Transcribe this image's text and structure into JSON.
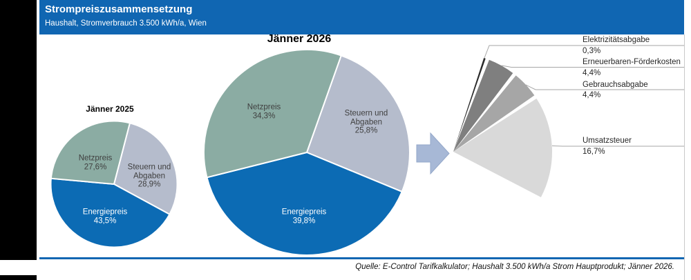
{
  "header": {
    "title": "Strompreiszusammensetzung",
    "subtitle": "Haushalt, Stromverbrauch 3.500 kWh/a, Wien"
  },
  "footer": {
    "source": "Quelle: E-Control Tarifkalkulator; Haushalt 3.500 kWh/a Strom Hauptprodukt; Jänner 2026."
  },
  "colors": {
    "header_blue": "#1066B2",
    "divider_blue": "#1066B2",
    "arrow": "#A7B8D6",
    "arrow_border": "#93A7C9",
    "leader_line": "#A6A6A6",
    "page_edge": "#C9C9C9"
  },
  "chart_data": [
    {
      "type": "pie",
      "title": "Jänner 2025",
      "unit": "%",
      "start_angle_deg": 14.5,
      "slices": [
        {
          "label": "Steuern und Abgaben",
          "label_lines": [
            "Steuern und",
            "Abgaben"
          ],
          "value": 28.9,
          "pct": "28,9%",
          "color": "#B5BCCC",
          "label_color": "#3F3F3F"
        },
        {
          "label": "Energiepreis",
          "label_lines": [
            "Energiepreis"
          ],
          "value": 43.5,
          "pct": "43,5%",
          "color": "#0C6BB4",
          "label_color": "#FFFFFF"
        },
        {
          "label": "Netzpreis",
          "label_lines": [
            "Netzpreis"
          ],
          "value": 27.6,
          "pct": "27,6%",
          "color": "#8BACA3",
          "label_color": "#3F3F3F"
        }
      ]
    },
    {
      "type": "pie",
      "title": "Jänner 2026",
      "unit": "%",
      "start_angle_deg": 19.5,
      "slices": [
        {
          "label": "Steuern und Abgaben",
          "label_lines": [
            "Steuern und",
            "Abgaben"
          ],
          "value": 25.8,
          "pct": "25,8%",
          "color": "#B5BCCC",
          "label_color": "#3F3F3F"
        },
        {
          "label": "Energiepreis",
          "label_lines": [
            "Energiepreis"
          ],
          "value": 39.8,
          "pct": "39,8%",
          "color": "#0C6BB4",
          "label_color": "#FFFFFF"
        },
        {
          "label": "Netzpreis",
          "label_lines": [
            "Netzpreis"
          ],
          "value": 34.3,
          "pct": "34,3%",
          "color": "#8BACA3",
          "label_color": "#3F3F3F"
        }
      ]
    },
    {
      "type": "pie",
      "variant": "exploded-detail-fan",
      "parent_slice": "Steuern und Abgaben",
      "unit": "%",
      "start_angle_deg": 18,
      "gap_deg": 2.2,
      "slices": [
        {
          "label": "Elektrizitätsabgabe",
          "value": 0.3,
          "pct": "0,3%",
          "color": "#2B2B2B"
        },
        {
          "label": "Erneuerbaren-Förderkosten",
          "value": 4.4,
          "pct": "4,4%",
          "color": "#7F7F7F"
        },
        {
          "label": "Gebrauchsabgabe",
          "value": 4.4,
          "pct": "4,4%",
          "color": "#A6A6A6"
        },
        {
          "label": "Umsatzsteuer",
          "value": 16.7,
          "pct": "16,7%",
          "color": "#D9D9D9"
        }
      ]
    }
  ]
}
